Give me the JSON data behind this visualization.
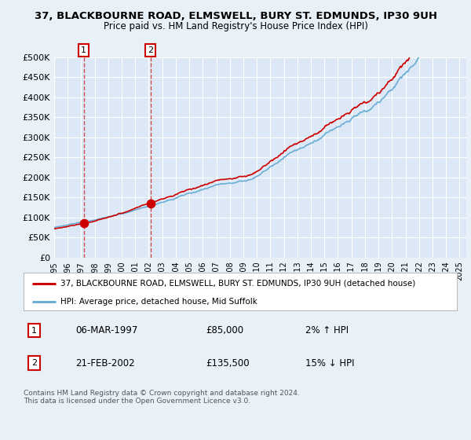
{
  "title_line1": "37, BLACKBOURNE ROAD, ELMSWELL, BURY ST. EDMUNDS, IP30 9UH",
  "title_line2": "Price paid vs. HM Land Registry's House Price Index (HPI)",
  "background_color": "#e8f0f8",
  "plot_bg_color": "#dce8f5",
  "grid_color": "#ffffff",
  "hpi_color": "#6baed6",
  "price_color": "#cc0000",
  "marker_color": "#cc0000",
  "dashed_color": "#cc3333",
  "sale1_year": 1997.18,
  "sale1_price": 85000,
  "sale2_year": 2002.13,
  "sale2_price": 135500,
  "legend_label1": "37, BLACKBOURNE ROAD, ELMSWELL, BURY ST. EDMUNDS, IP30 9UH (detached house)",
  "legend_label2": "HPI: Average price, detached house, Mid Suffolk",
  "annotation1_date": "06-MAR-1997",
  "annotation1_price": "£85,000",
  "annotation1_hpi": "2% ↑ HPI",
  "annotation2_date": "21-FEB-2002",
  "annotation2_price": "£135,500",
  "annotation2_hpi": "15% ↓ HPI",
  "footer": "Contains HM Land Registry data © Crown copyright and database right 2024.\nThis data is licensed under the Open Government Licence v3.0.",
  "xmin": 1995,
  "xmax": 2025.5,
  "ymin": 0,
  "ymax": 500000
}
